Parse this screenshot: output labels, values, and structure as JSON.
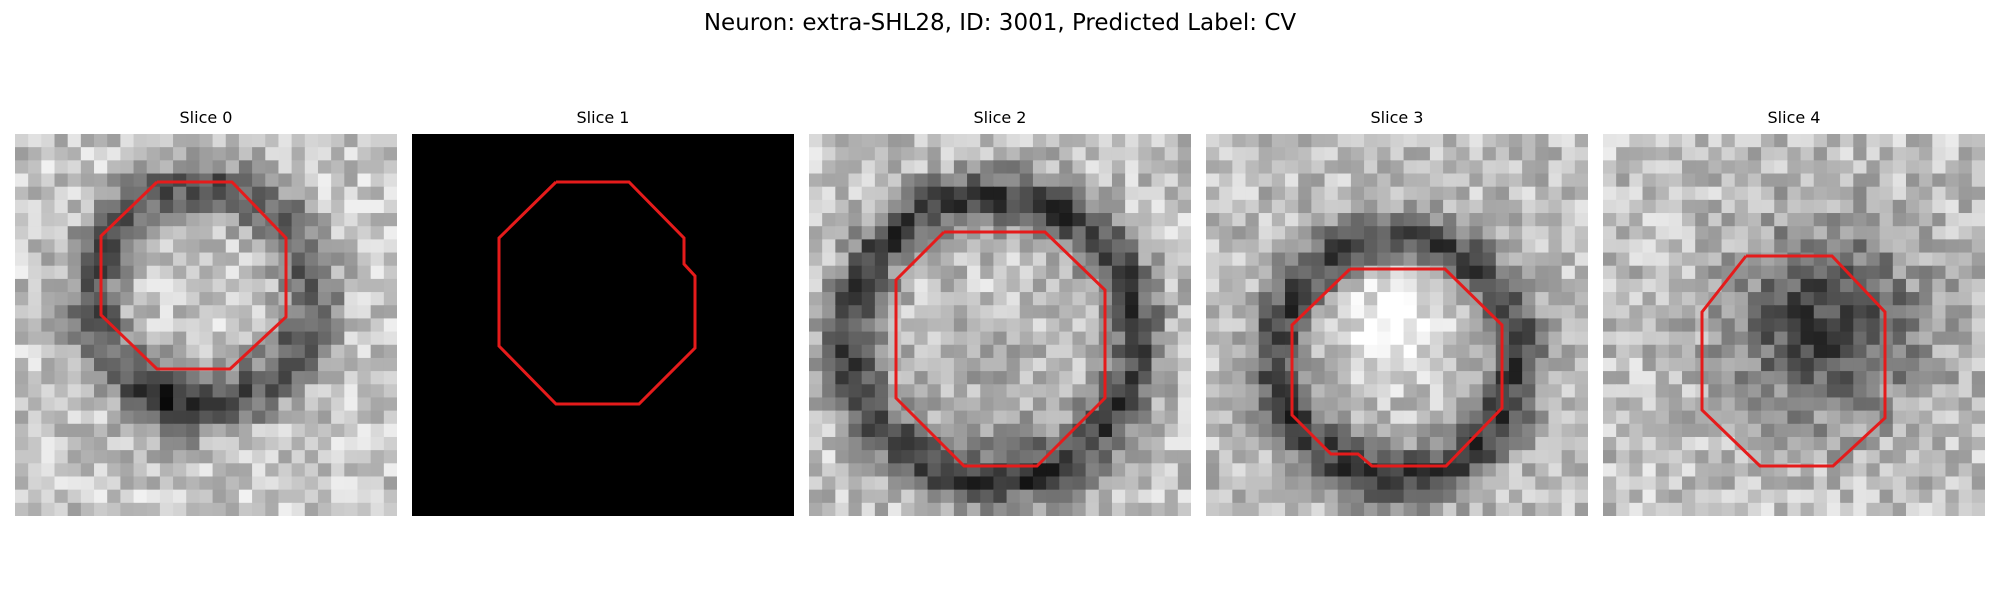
{
  "figure": {
    "title": "Neuron: extra-SHL28, ID: 3001, Predicted Label: CV"
  },
  "colors": {
    "contour": "#e51b1b",
    "background": "#ffffff"
  },
  "panels": [
    {
      "title": "Slice 0",
      "pattern": "ring-offset-up"
    },
    {
      "title": "Slice 1",
      "pattern": "black"
    },
    {
      "title": "Slice 2",
      "pattern": "ring-large"
    },
    {
      "title": "Slice 3",
      "pattern": "ring-medium-bright-center"
    },
    {
      "title": "Slice 4",
      "pattern": "dark-blob"
    }
  ]
}
